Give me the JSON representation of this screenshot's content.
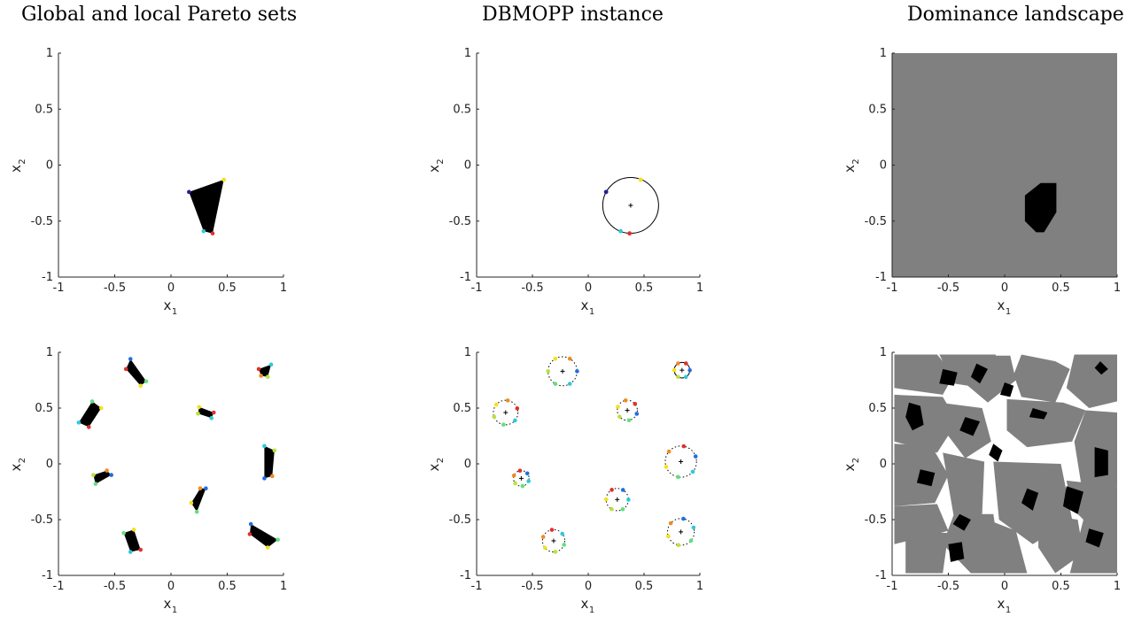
{
  "titles": {
    "left": "Global and local Pareto sets",
    "middle": "DBMOPP instance",
    "right": "Dominance landscape"
  },
  "axis_labels": {
    "x": "x",
    "x_sub": "1",
    "y": "x",
    "y_sub": "2"
  },
  "tick_labels": [
    "-1",
    "-0.5",
    "0",
    "0.5",
    "1"
  ],
  "colors": {
    "pareto_fill": "#000000",
    "landscape_gray": "#808080",
    "landscape_black": "#000000",
    "circle": "#000000"
  },
  "chart_data": [
    {
      "type": "scatter",
      "panel": "top-left",
      "xlim": [
        -1,
        1
      ],
      "ylim": [
        -1,
        1
      ],
      "polygons": [
        {
          "vertices": [
            [
              0.16,
              -0.24
            ],
            [
              0.47,
              -0.13
            ],
            [
              0.37,
              -0.61
            ],
            [
              0.29,
              -0.59
            ]
          ],
          "point_colors": [
            "#1f1fa0",
            "#f4e11b",
            "#e0302a",
            "#2fc8d8"
          ]
        }
      ]
    },
    {
      "type": "scatter",
      "panel": "top-middle",
      "xlim": [
        -1,
        1
      ],
      "ylim": [
        -1,
        1
      ],
      "circles": [
        {
          "center": [
            0.38,
            -0.36
          ],
          "radius": 0.25,
          "dashed": false
        }
      ],
      "points": [
        {
          "x": 0.16,
          "y": -0.24,
          "color": "#1f1fa0"
        },
        {
          "x": 0.47,
          "y": -0.13,
          "color": "#f4e11b"
        },
        {
          "x": 0.37,
          "y": -0.61,
          "color": "#e0302a"
        },
        {
          "x": 0.29,
          "y": -0.59,
          "color": "#2fc8d8"
        }
      ]
    },
    {
      "type": "heatmap",
      "panel": "top-right",
      "xlim": [
        -1,
        1
      ],
      "ylim": [
        -1,
        1
      ],
      "background": "gray",
      "black_regions": [
        [
          [
            0.18,
            -0.27
          ],
          [
            0.32,
            -0.16
          ],
          [
            0.46,
            -0.16
          ],
          [
            0.46,
            -0.42
          ],
          [
            0.35,
            -0.6
          ],
          [
            0.28,
            -0.6
          ],
          [
            0.18,
            -0.5
          ]
        ]
      ]
    },
    {
      "type": "scatter",
      "panel": "bottom-left",
      "xlim": [
        -1,
        1
      ],
      "ylim": [
        -1,
        1
      ],
      "polygons": [
        {
          "vertices": [
            [
              -0.36,
              0.94
            ],
            [
              -0.22,
              0.74
            ],
            [
              -0.27,
              0.7
            ],
            [
              -0.4,
              0.85
            ]
          ]
        },
        {
          "vertices": [
            [
              -0.7,
              0.56
            ],
            [
              -0.62,
              0.5
            ],
            [
              -0.73,
              0.33
            ],
            [
              -0.82,
              0.37
            ]
          ]
        },
        {
          "vertices": [
            [
              0.25,
              0.51
            ],
            [
              0.38,
              0.46
            ],
            [
              0.36,
              0.41
            ],
            [
              0.24,
              0.45
            ]
          ]
        },
        {
          "vertices": [
            [
              0.78,
              0.85
            ],
            [
              0.89,
              0.89
            ],
            [
              0.86,
              0.78
            ],
            [
              0.8,
              0.79
            ]
          ]
        },
        {
          "vertices": [
            [
              0.83,
              0.16
            ],
            [
              0.92,
              0.12
            ],
            [
              0.9,
              -0.11
            ],
            [
              0.83,
              -0.13
            ]
          ]
        },
        {
          "vertices": [
            [
              -0.69,
              -0.1
            ],
            [
              -0.57,
              -0.06
            ],
            [
              -0.53,
              -0.1
            ],
            [
              -0.67,
              -0.18
            ]
          ]
        },
        {
          "vertices": [
            [
              0.26,
              -0.22
            ],
            [
              0.31,
              -0.22
            ],
            [
              0.23,
              -0.43
            ],
            [
              0.18,
              -0.35
            ]
          ]
        },
        {
          "vertices": [
            [
              0.71,
              -0.54
            ],
            [
              0.95,
              -0.68
            ],
            [
              0.86,
              -0.75
            ],
            [
              0.7,
              -0.63
            ]
          ]
        },
        {
          "vertices": [
            [
              -0.42,
              -0.62
            ],
            [
              -0.33,
              -0.59
            ],
            [
              -0.27,
              -0.77
            ],
            [
              -0.36,
              -0.79
            ]
          ]
        }
      ]
    },
    {
      "type": "scatter",
      "panel": "bottom-middle",
      "xlim": [
        -1,
        1
      ],
      "ylim": [
        -1,
        1
      ],
      "circles": [
        {
          "center": [
            -0.23,
            0.83
          ],
          "radius": 0.13,
          "dashed": true
        },
        {
          "center": [
            -0.74,
            0.46
          ],
          "radius": 0.11,
          "dashed": true
        },
        {
          "center": [
            0.35,
            0.48
          ],
          "radius": 0.09,
          "dashed": true
        },
        {
          "center": [
            0.84,
            0.84
          ],
          "radius": 0.07,
          "dashed": false
        },
        {
          "center": [
            0.83,
            0.02
          ],
          "radius": 0.14,
          "dashed": true
        },
        {
          "center": [
            -0.6,
            -0.13
          ],
          "radius": 0.07,
          "dashed": true
        },
        {
          "center": [
            0.26,
            -0.32
          ],
          "radius": 0.1,
          "dashed": true
        },
        {
          "center": [
            0.83,
            -0.61
          ],
          "radius": 0.12,
          "dashed": true
        },
        {
          "center": [
            -0.31,
            -0.69
          ],
          "radius": 0.1,
          "dashed": true
        }
      ]
    },
    {
      "type": "heatmap",
      "panel": "bottom-right",
      "xlim": [
        -1,
        1
      ],
      "ylim": [
        -1,
        1
      ],
      "background": "white",
      "gray_regions": [
        [
          [
            -0.98,
            0.98
          ],
          [
            -0.6,
            0.98
          ],
          [
            -0.45,
            0.8
          ],
          [
            -0.55,
            0.62
          ],
          [
            -0.98,
            0.68
          ]
        ],
        [
          [
            -0.58,
            0.98
          ],
          [
            -0.08,
            0.98
          ],
          [
            -0.05,
            0.8
          ],
          [
            -0.2,
            0.68
          ],
          [
            -0.45,
            0.72
          ]
        ],
        [
          [
            -0.32,
            0.97
          ],
          [
            0.05,
            0.97
          ],
          [
            0.1,
            0.75
          ],
          [
            -0.15,
            0.55
          ],
          [
            -0.35,
            0.72
          ]
        ],
        [
          [
            0.15,
            0.98
          ],
          [
            0.45,
            0.92
          ],
          [
            0.58,
            0.85
          ],
          [
            0.45,
            0.55
          ],
          [
            0.15,
            0.6
          ],
          [
            0.08,
            0.8
          ]
        ],
        [
          [
            0.62,
            0.98
          ],
          [
            1.0,
            0.98
          ],
          [
            1.0,
            0.56
          ],
          [
            0.75,
            0.5
          ],
          [
            0.55,
            0.68
          ]
        ],
        [
          [
            -0.98,
            0.62
          ],
          [
            -0.55,
            0.6
          ],
          [
            -0.42,
            0.38
          ],
          [
            -0.6,
            0.1
          ],
          [
            -0.98,
            0.2
          ]
        ],
        [
          [
            -0.58,
            0.55
          ],
          [
            -0.2,
            0.5
          ],
          [
            -0.12,
            0.2
          ],
          [
            -0.35,
            0.05
          ],
          [
            -0.5,
            0.25
          ]
        ],
        [
          [
            0.02,
            0.58
          ],
          [
            0.52,
            0.55
          ],
          [
            0.72,
            0.48
          ],
          [
            0.6,
            0.2
          ],
          [
            0.2,
            0.15
          ],
          [
            0.02,
            0.3
          ]
        ],
        [
          [
            0.72,
            0.48
          ],
          [
            1.0,
            0.46
          ],
          [
            1.0,
            -0.2
          ],
          [
            0.68,
            -0.18
          ],
          [
            0.62,
            0.2
          ]
        ],
        [
          [
            -0.98,
            0.18
          ],
          [
            -0.65,
            0.16
          ],
          [
            -0.5,
            -0.1
          ],
          [
            -0.62,
            -0.35
          ],
          [
            -0.98,
            -0.38
          ]
        ],
        [
          [
            -0.55,
            0.1
          ],
          [
            -0.18,
            0.02
          ],
          [
            -0.2,
            -0.45
          ],
          [
            -0.45,
            -0.48
          ]
        ],
        [
          [
            -0.1,
            0.02
          ],
          [
            0.5,
            0.0
          ],
          [
            0.6,
            -0.5
          ],
          [
            0.25,
            -0.72
          ],
          [
            -0.05,
            -0.5
          ]
        ],
        [
          [
            0.55,
            -0.15
          ],
          [
            1.0,
            -0.2
          ],
          [
            1.0,
            -0.58
          ],
          [
            0.72,
            -0.52
          ],
          [
            0.6,
            -0.4
          ]
        ],
        [
          [
            -0.98,
            -0.38
          ],
          [
            -0.6,
            -0.36
          ],
          [
            -0.5,
            -0.6
          ],
          [
            -0.98,
            -0.72
          ]
        ],
        [
          [
            -0.45,
            -0.45
          ],
          [
            -0.1,
            -0.45
          ],
          [
            -0.05,
            -0.8
          ],
          [
            -0.3,
            -0.98
          ],
          [
            -0.55,
            -0.72
          ]
        ],
        [
          [
            -0.88,
            -0.6
          ],
          [
            -0.5,
            -0.62
          ],
          [
            -0.55,
            -0.98
          ],
          [
            -0.88,
            -0.98
          ]
        ],
        [
          [
            -0.28,
            -0.45
          ],
          [
            0.1,
            -0.6
          ],
          [
            0.2,
            -0.98
          ],
          [
            -0.3,
            -0.98
          ]
        ],
        [
          [
            0.3,
            -0.45
          ],
          [
            0.65,
            -0.5
          ],
          [
            0.7,
            -0.8
          ],
          [
            0.45,
            -0.98
          ],
          [
            0.3,
            -0.75
          ]
        ],
        [
          [
            0.7,
            -0.5
          ],
          [
            1.0,
            -0.55
          ],
          [
            1.0,
            -0.98
          ],
          [
            0.58,
            -0.98
          ]
        ]
      ],
      "black_regions": [
        [
          [
            -0.55,
            0.85
          ],
          [
            -0.42,
            0.82
          ],
          [
            -0.45,
            0.7
          ],
          [
            -0.58,
            0.72
          ]
        ],
        [
          [
            -0.25,
            0.9
          ],
          [
            -0.15,
            0.85
          ],
          [
            -0.22,
            0.72
          ],
          [
            -0.3,
            0.78
          ]
        ],
        [
          [
            0.0,
            0.73
          ],
          [
            0.08,
            0.7
          ],
          [
            0.05,
            0.6
          ],
          [
            -0.04,
            0.62
          ]
        ],
        [
          [
            0.85,
            0.92
          ],
          [
            0.92,
            0.85
          ],
          [
            0.86,
            0.8
          ],
          [
            0.8,
            0.86
          ]
        ],
        [
          [
            -0.85,
            0.55
          ],
          [
            -0.75,
            0.52
          ],
          [
            -0.72,
            0.35
          ],
          [
            -0.82,
            0.3
          ],
          [
            -0.88,
            0.42
          ]
        ],
        [
          [
            -0.35,
            0.42
          ],
          [
            -0.22,
            0.38
          ],
          [
            -0.28,
            0.25
          ],
          [
            -0.4,
            0.3
          ]
        ],
        [
          [
            0.25,
            0.5
          ],
          [
            0.38,
            0.46
          ],
          [
            0.35,
            0.4
          ],
          [
            0.22,
            0.42
          ]
        ],
        [
          [
            0.8,
            0.15
          ],
          [
            0.92,
            0.12
          ],
          [
            0.92,
            -0.1
          ],
          [
            0.8,
            -0.12
          ]
        ],
        [
          [
            -0.75,
            -0.05
          ],
          [
            -0.62,
            -0.08
          ],
          [
            -0.65,
            -0.2
          ],
          [
            -0.78,
            -0.17
          ]
        ],
        [
          [
            -0.1,
            0.18
          ],
          [
            -0.02,
            0.12
          ],
          [
            -0.06,
            0.02
          ],
          [
            -0.14,
            0.08
          ]
        ],
        [
          [
            0.2,
            -0.22
          ],
          [
            0.3,
            -0.26
          ],
          [
            0.25,
            -0.42
          ],
          [
            0.15,
            -0.35
          ]
        ],
        [
          [
            -0.4,
            -0.45
          ],
          [
            -0.3,
            -0.5
          ],
          [
            -0.36,
            -0.6
          ],
          [
            -0.46,
            -0.54
          ]
        ],
        [
          [
            0.75,
            -0.58
          ],
          [
            0.88,
            -0.62
          ],
          [
            0.84,
            -0.75
          ],
          [
            0.72,
            -0.7
          ]
        ],
        [
          [
            -0.5,
            -0.72
          ],
          [
            -0.38,
            -0.7
          ],
          [
            -0.36,
            -0.85
          ],
          [
            -0.48,
            -0.88
          ]
        ],
        [
          [
            0.55,
            -0.2
          ],
          [
            0.7,
            -0.25
          ],
          [
            0.65,
            -0.45
          ],
          [
            0.52,
            -0.38
          ]
        ]
      ]
    }
  ]
}
